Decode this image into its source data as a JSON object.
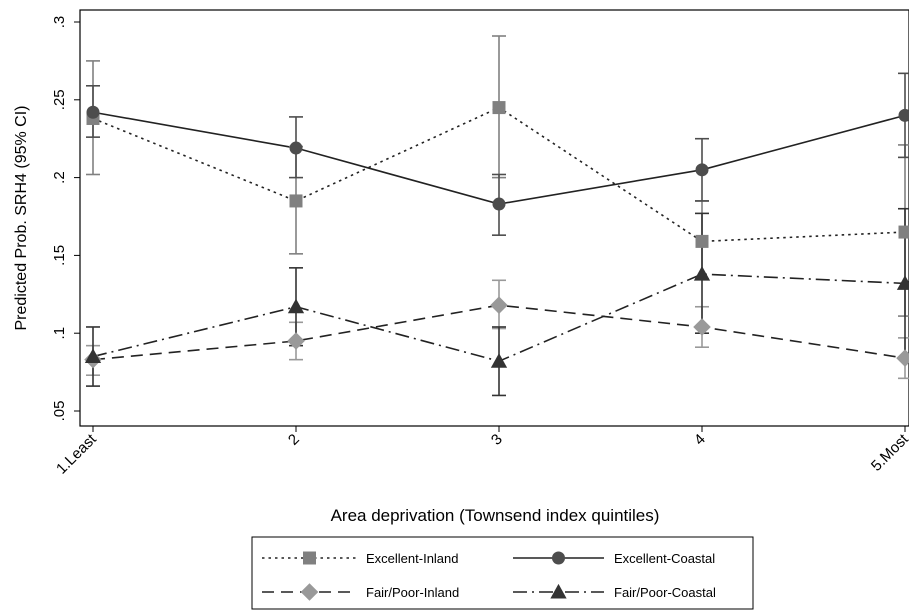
{
  "chart_data": {
    "type": "line",
    "xlabel": "Area deprivation (Townsend index quintiles)",
    "ylabel": "Predicted Prob. SRH4 (95% CI)",
    "categories": [
      "1.Least",
      "2",
      "3",
      "4",
      "5.Most"
    ],
    "y_ticks": [
      ".05",
      ".1",
      ".15",
      ".2",
      ".25",
      ".3"
    ],
    "y_tick_values": [
      0.05,
      0.1,
      0.15,
      0.2,
      0.25,
      0.3
    ],
    "ylim": [
      0.04,
      0.3
    ],
    "grid": false,
    "legend_placement": "bottom",
    "series": [
      {
        "name": "Excellent-Inland",
        "line_style": "dotted",
        "marker": "square",
        "color": "#808080",
        "values": [
          0.238,
          0.185,
          0.245,
          0.159,
          0.165
        ],
        "ci_low": [
          0.202,
          0.151,
          0.2,
          0.135,
          0.111
        ],
        "ci_high": [
          0.275,
          0.22,
          0.291,
          0.185,
          0.221
        ]
      },
      {
        "name": "Excellent-Coastal",
        "line_style": "solid",
        "marker": "circle",
        "color": "#4d4d4d",
        "values": [
          0.242,
          0.219,
          0.183,
          0.205,
          0.24
        ],
        "ci_low": [
          0.226,
          0.2,
          0.163,
          0.185,
          0.213
        ],
        "ci_high": [
          0.259,
          0.239,
          0.202,
          0.225,
          0.267
        ]
      },
      {
        "name": "Fair/Poor-Inland",
        "line_style": "dashed",
        "marker": "diamond",
        "color": "#999999",
        "values": [
          0.083,
          0.095,
          0.118,
          0.104,
          0.084
        ],
        "ci_low": [
          0.073,
          0.083,
          0.103,
          0.091,
          0.071
        ],
        "ci_high": [
          0.092,
          0.107,
          0.134,
          0.117,
          0.097
        ]
      },
      {
        "name": "Fair/Poor-Coastal",
        "line_style": "dashdot",
        "marker": "triangle",
        "color": "#333333",
        "values": [
          0.085,
          0.117,
          0.082,
          0.138,
          0.132
        ],
        "ci_low": [
          0.066,
          0.092,
          0.06,
          0.1,
          0.084
        ],
        "ci_high": [
          0.104,
          0.142,
          0.104,
          0.177,
          0.18
        ]
      }
    ]
  }
}
